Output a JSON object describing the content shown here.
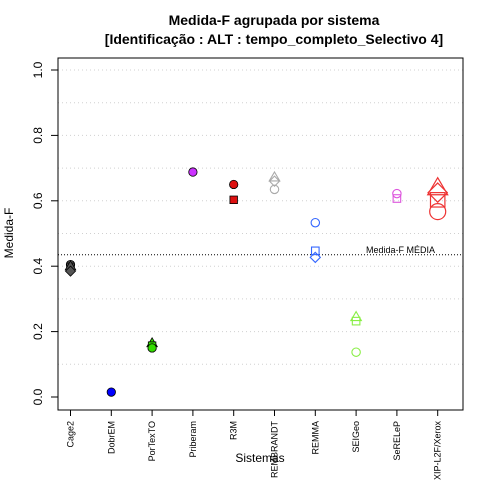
{
  "chart_data": {
    "type": "scatter",
    "title": "Medida-F agrupada por sistema",
    "subtitle": "[Identificação : ALT : tempo_completo_Selectivo 4]",
    "xlabel": "Sistemas",
    "ylabel": "Medida-F",
    "ylim": [
      0,
      1
    ],
    "yticks": [
      "0.0",
      "0.2",
      "0.4",
      "0.6",
      "0.8",
      "1.0"
    ],
    "grid": "horizontal dotted",
    "categories": [
      "Cage2",
      "DobrEM",
      "PorTexTO",
      "Priberam",
      "R3M",
      "REMBRANDT",
      "REMMA",
      "SEIGeo",
      "SeRELeP",
      "XIP-L2F/Xerox"
    ],
    "reference_line": {
      "label": "Medida-F MÉDIA",
      "value": 0.435
    },
    "points": [
      {
        "category": "Cage2",
        "y": 0.405,
        "shape": "circle-filled",
        "color": "#555555"
      },
      {
        "category": "Cage2",
        "y": 0.398,
        "shape": "square-filled",
        "color": "#555555"
      },
      {
        "category": "Cage2",
        "y": 0.4,
        "shape": "triangle-filled",
        "color": "#555555"
      },
      {
        "category": "Cage2",
        "y": 0.385,
        "shape": "diamond-filled",
        "color": "#555555"
      },
      {
        "category": "DobrEM",
        "y": 0.015,
        "shape": "circle-filled",
        "color": "#0000ff"
      },
      {
        "category": "PorTexTO",
        "y": 0.165,
        "shape": "triangle-filled",
        "color": "#33dd00"
      },
      {
        "category": "PorTexTO",
        "y": 0.157,
        "shape": "square-filled",
        "color": "#33dd00"
      },
      {
        "category": "PorTexTO",
        "y": 0.15,
        "shape": "circle-filled",
        "color": "#33dd00"
      },
      {
        "category": "Priberam",
        "y": 0.688,
        "shape": "circle-filled",
        "color": "#cc33ff"
      },
      {
        "category": "R3M",
        "y": 0.65,
        "shape": "circle-filled",
        "color": "#dd1111"
      },
      {
        "category": "R3M",
        "y": 0.603,
        "shape": "square-filled",
        "color": "#dd1111"
      },
      {
        "category": "REMBRANDT",
        "y": 0.672,
        "shape": "triangle-open",
        "color": "#aaaaaa"
      },
      {
        "category": "REMBRANDT",
        "y": 0.66,
        "shape": "diamond-open",
        "color": "#aaaaaa"
      },
      {
        "category": "REMBRANDT",
        "y": 0.635,
        "shape": "circle-open",
        "color": "#aaaaaa"
      },
      {
        "category": "REMMA",
        "y": 0.533,
        "shape": "circle-open",
        "color": "#3366ff"
      },
      {
        "category": "REMMA",
        "y": 0.447,
        "shape": "square-open",
        "color": "#3366ff"
      },
      {
        "category": "REMMA",
        "y": 0.427,
        "shape": "diamond-open",
        "color": "#3366ff"
      },
      {
        "category": "SEIGeo",
        "y": 0.245,
        "shape": "triangle-open",
        "color": "#88ee44"
      },
      {
        "category": "SEIGeo",
        "y": 0.232,
        "shape": "square-open",
        "color": "#88ee44"
      },
      {
        "category": "SEIGeo",
        "y": 0.137,
        "shape": "circle-open",
        "color": "#88ee44"
      },
      {
        "category": "SeRELeP",
        "y": 0.622,
        "shape": "circle-open",
        "color": "#dd55dd"
      },
      {
        "category": "SeRELeP",
        "y": 0.607,
        "shape": "square-open",
        "color": "#dd55dd"
      },
      {
        "category": "XIP-L2F/Xerox",
        "y": 0.64,
        "shape": "triangle-open-large",
        "color": "#ee3333"
      },
      {
        "category": "XIP-L2F/Xerox",
        "y": 0.625,
        "shape": "diamond-open-large",
        "color": "#ee3333"
      },
      {
        "category": "XIP-L2F/Xerox",
        "y": 0.603,
        "shape": "square-open-large",
        "color": "#ee3333"
      },
      {
        "category": "XIP-L2F/Xerox",
        "y": 0.567,
        "shape": "circle-open-large",
        "color": "#ee3333"
      }
    ]
  }
}
